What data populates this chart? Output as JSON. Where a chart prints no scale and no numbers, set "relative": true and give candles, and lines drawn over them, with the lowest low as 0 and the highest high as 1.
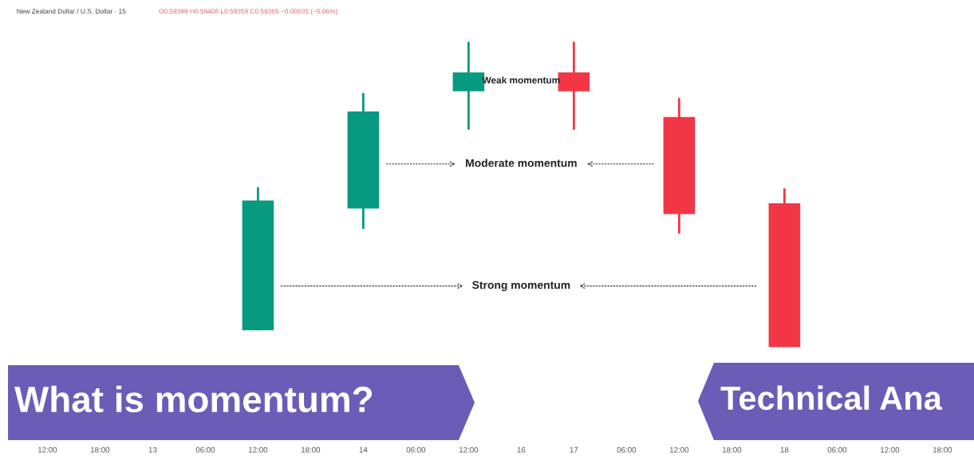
{
  "chart_data": {
    "type": "candlestick",
    "relative": true,
    "title": "New Zealand Dollar / U.S. Dollar · 15",
    "subtitle": "O0.59399 H0.59408 L0.59359 C0.59365 −0.00035 (−0.06%)",
    "categories": [
      "12:00",
      "18:00",
      "13",
      "06:00",
      "12:00",
      "18:00",
      "14",
      "06:00",
      "12:00",
      "16",
      "17",
      "06:00",
      "12:00",
      "18:00",
      "18",
      "06:00",
      "12:00",
      "18:00"
    ],
    "ohlc": [
      null,
      null,
      null,
      null,
      [
        0.055,
        0.524,
        0.055,
        0.48
      ],
      null,
      [
        0.454,
        0.832,
        0.387,
        0.772
      ],
      null,
      [
        0.838,
        1.0,
        0.712,
        0.9
      ],
      null,
      [
        0.9,
        1.0,
        0.712,
        0.838
      ],
      null,
      [
        0.754,
        0.816,
        0.372,
        0.436
      ],
      null,
      [
        0.471,
        0.52,
        0.0,
        0.0
      ],
      null,
      null,
      null
    ],
    "colors": [
      null,
      null,
      null,
      null,
      "#089981",
      null,
      "#089981",
      null,
      "#089981",
      null,
      "#f23645",
      null,
      "#f23645",
      null,
      "#f23645",
      null,
      null,
      null
    ],
    "annotations": [
      "Weak momentum",
      "Moderate momentum",
      "Strong momentum",
      "What is momentum?",
      "Technical Ana"
    ],
    "grid": false,
    "legend": false
  }
}
